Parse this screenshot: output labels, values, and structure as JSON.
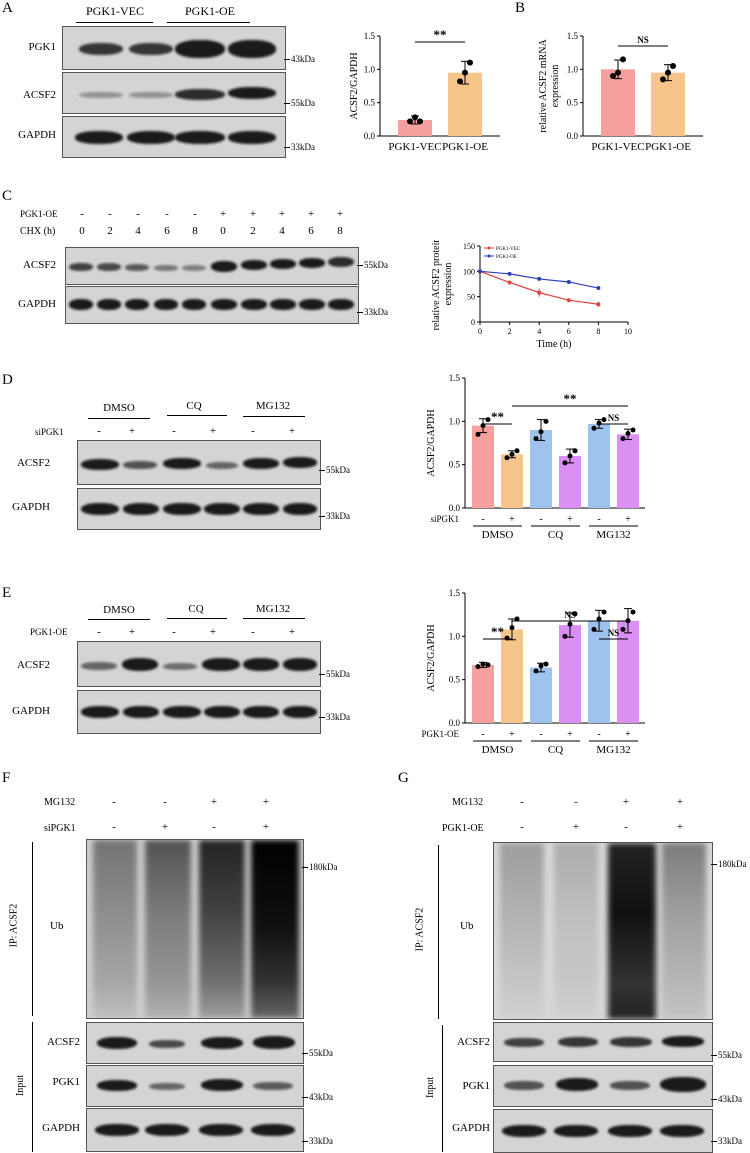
{
  "panels": [
    "A",
    "B",
    "C",
    "D",
    "E",
    "F",
    "G"
  ],
  "panel_A": {
    "groups": [
      "PGK1-VEC",
      "PGK1-OE"
    ],
    "rows": [
      "PGK1",
      "ACSF2",
      "GAPDH"
    ],
    "markers": [
      "43kDa",
      "55kDa",
      "33kDa"
    ]
  },
  "panel_C": {
    "cond_labels": [
      "PGK1-OE",
      "CHX (h)"
    ],
    "pgk1_oe": [
      "-",
      "-",
      "-",
      "-",
      "-",
      "+",
      "+",
      "+",
      "+",
      "+"
    ],
    "chx": [
      "0",
      "2",
      "4",
      "6",
      "8",
      "0",
      "2",
      "4",
      "6",
      "8"
    ],
    "rows": [
      "ACSF2",
      "GAPDH"
    ],
    "markers": [
      "55kDa",
      "33kDa"
    ]
  },
  "panel_D": {
    "groups": [
      "DMSO",
      "CQ",
      "MG132"
    ],
    "cond_label": "siPGK1",
    "signs": [
      "-",
      "+",
      "-",
      "+",
      "-",
      "+"
    ],
    "rows": [
      "ACSF2",
      "GAPDH"
    ],
    "markers": [
      "55kDa",
      "33kDa"
    ]
  },
  "panel_E": {
    "groups": [
      "DMSO",
      "CQ",
      "MG132"
    ],
    "cond_label": "PGK1-OE",
    "signs": [
      "-",
      "+",
      "-",
      "+",
      "-",
      "+"
    ],
    "rows": [
      "ACSF2",
      "GAPDH"
    ],
    "markers": [
      "55kDa",
      "33kDa"
    ]
  },
  "panel_F": {
    "cond_labels": [
      "MG132",
      "siPGK1"
    ],
    "mg132": [
      "-",
      "-",
      "+",
      "+"
    ],
    "cond2": [
      "-",
      "+",
      "-",
      "+"
    ],
    "ip_label": "IP: ACSF2",
    "ub": "Ub",
    "input_label": "Input",
    "input_rows": [
      "ACSF2",
      "PGK1",
      "GAPDH"
    ],
    "markers": [
      "180kDa",
      "55kDa",
      "43kDa",
      "33kDa"
    ]
  },
  "panel_G": {
    "cond_labels": [
      "MG132",
      "PGK1-OE"
    ],
    "mg132": [
      "-",
      "-",
      "+",
      "+"
    ],
    "cond2": [
      "-",
      "+",
      "-",
      "+"
    ],
    "ip_label": "IP: ACSF2",
    "ub": "Ub",
    "input_label": "Input",
    "input_rows": [
      "ACSF2",
      "PGK1",
      "GAPDH"
    ],
    "markers": [
      "180kDa",
      "55kDa",
      "43kDa",
      "33kDa"
    ]
  },
  "colors": {
    "pink": "#f6a0a0",
    "orange": "#f7c48a",
    "blue": "#9dc3ee",
    "purple": "#dc8ff2",
    "line_vec": "#e0433b",
    "line_oe": "#2e3fb8"
  },
  "chart_data": [
    {
      "id": "A",
      "type": "bar",
      "categories": [
        "PGK1-VEC",
        "PGK1-OE"
      ],
      "values": [
        0.24,
        0.95
      ],
      "errors": [
        0.06,
        0.17
      ],
      "points": [
        [
          0.22,
          0.28,
          0.22
        ],
        [
          0.82,
          0.95,
          1.1
        ]
      ],
      "colors": [
        "#f6a0a0",
        "#f7c48a"
      ],
      "ylabel": "ACSF2/GAPDH",
      "ylim": [
        0,
        1.5
      ],
      "yticks": [
        "0.0",
        "0.5",
        "1.0",
        "1.5"
      ],
      "sig": "**"
    },
    {
      "id": "B",
      "type": "bar",
      "categories": [
        "PGK1-VEC",
        "PGK1-OE"
      ],
      "values": [
        1.0,
        0.95
      ],
      "errors": [
        0.14,
        0.12
      ],
      "points": [
        [
          0.9,
          0.95,
          1.15
        ],
        [
          0.85,
          0.95,
          1.05
        ]
      ],
      "colors": [
        "#f6a0a0",
        "#f7c48a"
      ],
      "ylabel": "relative ACSF2 mRNA expression",
      "ylim": [
        0,
        1.5
      ],
      "yticks": [
        "0.0",
        "0.5",
        "1.0",
        "1.5"
      ],
      "sig": "NS"
    },
    {
      "id": "C",
      "type": "line",
      "x": [
        0,
        2,
        4,
        6,
        8
      ],
      "series": [
        {
          "name": "PGK1-VEC",
          "values": [
            100,
            78,
            58,
            43,
            35
          ],
          "errors": [
            0,
            3,
            8,
            2,
            5
          ]
        },
        {
          "name": "PGK1-OE",
          "values": [
            100,
            95,
            85,
            79,
            67
          ],
          "errors": [
            0,
            3,
            2,
            2,
            2
          ]
        }
      ],
      "xlabel": "Time (h)",
      "ylabel": "relative ACSF2 protein expression",
      "xlim": [
        0,
        10
      ],
      "ylim": [
        0,
        150
      ],
      "xticks": [
        "0",
        "2",
        "4",
        "6",
        "8",
        "10"
      ],
      "yticks": [
        "0",
        "50",
        "100",
        "150"
      ]
    },
    {
      "id": "D",
      "type": "bar",
      "categories": [
        "-",
        "+",
        "-",
        "+",
        "-",
        "+"
      ],
      "groups": [
        "DMSO",
        "CQ",
        "MG132"
      ],
      "cond_label": "siPGK1",
      "values": [
        0.95,
        0.62,
        0.9,
        0.6,
        0.97,
        0.85
      ],
      "errors": [
        0.08,
        0.04,
        0.12,
        0.08,
        0.05,
        0.06
      ],
      "points": [
        [
          0.85,
          0.95,
          1.02
        ],
        [
          0.58,
          0.62,
          0.66
        ],
        [
          0.8,
          0.88,
          1.0
        ],
        [
          0.52,
          0.6,
          0.66
        ],
        [
          0.92,
          0.98,
          1.02
        ],
        [
          0.8,
          0.86,
          0.9
        ]
      ],
      "colors": [
        "#f6a0a0",
        "#f7c48a",
        "#9dc3ee",
        "#dc8ff2",
        "#9dc3ee",
        "#dc8ff2"
      ],
      "ylabel": "ACSF2/GAPDH",
      "ylim": [
        0,
        1.5
      ],
      "yticks": [
        "0.0",
        "0.5",
        "1.0",
        "1.5"
      ],
      "sig": [
        {
          "from": 0,
          "to": 1,
          "label": "**"
        },
        {
          "from": 1,
          "to": 5,
          "label": "**"
        },
        {
          "from": 4,
          "to": 5,
          "label": "NS"
        }
      ]
    },
    {
      "id": "E",
      "type": "bar",
      "categories": [
        "-",
        "+",
        "-",
        "+",
        "-",
        "+"
      ],
      "groups": [
        "DMSO",
        "CQ",
        "MG132"
      ],
      "cond_label": "PGK1-OE",
      "values": [
        0.67,
        1.08,
        0.64,
        1.13,
        1.18,
        1.18
      ],
      "errors": [
        0.03,
        0.12,
        0.05,
        0.14,
        0.12,
        0.14
      ],
      "points": [
        [
          0.65,
          0.68,
          0.67
        ],
        [
          0.98,
          1.1,
          1.2
        ],
        [
          0.6,
          0.66,
          0.68
        ],
        [
          1.0,
          1.14,
          1.26
        ],
        [
          1.08,
          1.2,
          1.28
        ],
        [
          1.08,
          1.18,
          1.28
        ]
      ],
      "colors": [
        "#f6a0a0",
        "#f7c48a",
        "#9dc3ee",
        "#dc8ff2",
        "#9dc3ee",
        "#dc8ff2"
      ],
      "ylabel": "ACSF2/GAPDH",
      "ylim": [
        0,
        1.5
      ],
      "yticks": [
        "0.0",
        "0.5",
        "1.0",
        "1.5"
      ],
      "sig": [
        {
          "from": 0,
          "to": 1,
          "label": "**"
        },
        {
          "from": 1,
          "to": 5,
          "label": "NS"
        },
        {
          "from": 4,
          "to": 5,
          "label": "NS"
        }
      ]
    }
  ]
}
